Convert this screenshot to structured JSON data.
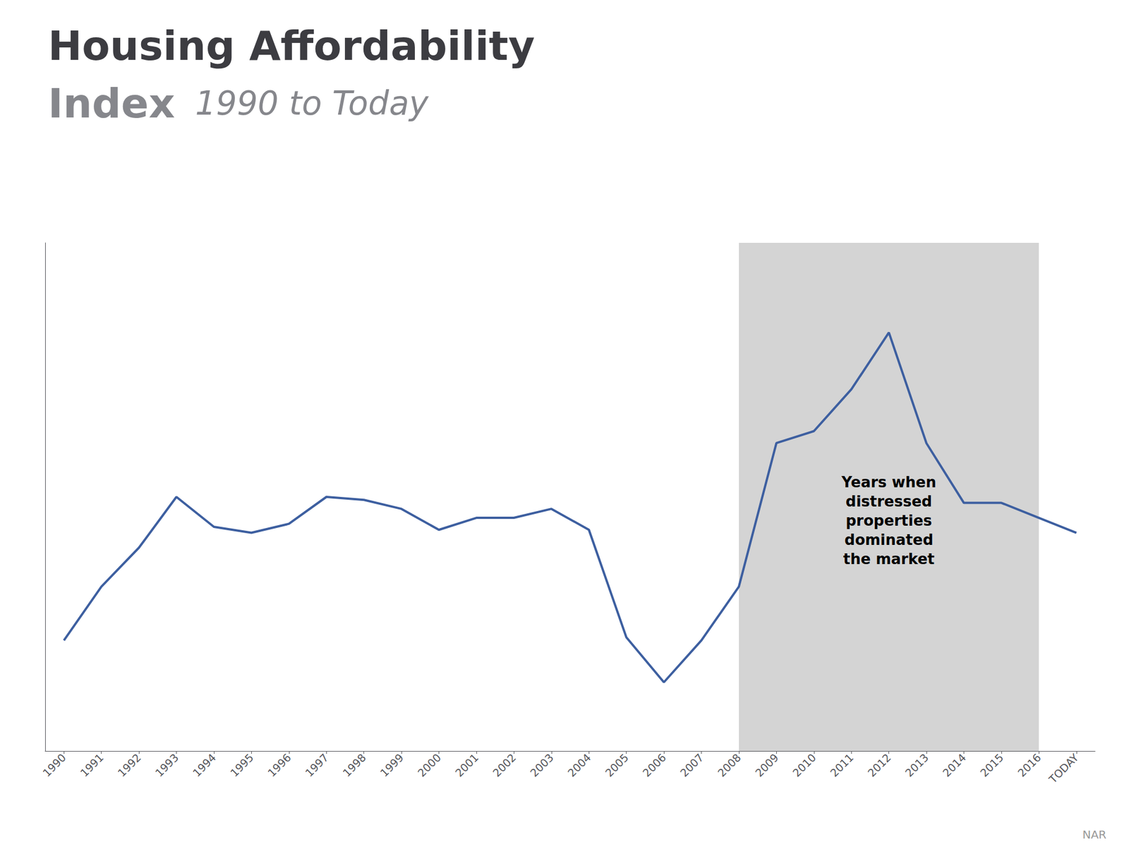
{
  "chart_data": {
    "type": "line",
    "title": "Housing Affordability",
    "subtitle": [
      "Index",
      "1990 to Today"
    ],
    "categories": [
      "1990",
      "1991",
      "1992",
      "1993",
      "1994",
      "1995",
      "1996",
      "1997",
      "1998",
      "1999",
      "2000",
      "2001",
      "2002",
      "2003",
      "2004",
      "2005",
      "2006",
      "2007",
      "2008",
      "2009",
      "2010",
      "2011",
      "2012",
      "2013",
      "2014",
      "2015",
      "2016",
      "TODAY"
    ],
    "values": [
      112,
      130,
      143,
      160,
      150,
      148,
      151,
      160,
      159,
      156,
      149,
      153,
      153,
      156,
      149,
      113,
      98,
      112,
      130,
      178,
      182,
      196,
      215,
      178,
      158,
      158,
      153,
      148
    ],
    "color": "#3d5fa0",
    "ylim": [
      75,
      245
    ],
    "yticks": [],
    "grid": false,
    "tick_labels": "x",
    "annotations": [
      {
        "text": "Years when\ndistressed\nproperties\ndominated\nthe market",
        "x": "2012",
        "y": 152,
        "x_start": "2008",
        "x_end": "2016",
        "color": "#d4d4d4"
      },
      {
        "text": "NAR"
      }
    ]
  }
}
